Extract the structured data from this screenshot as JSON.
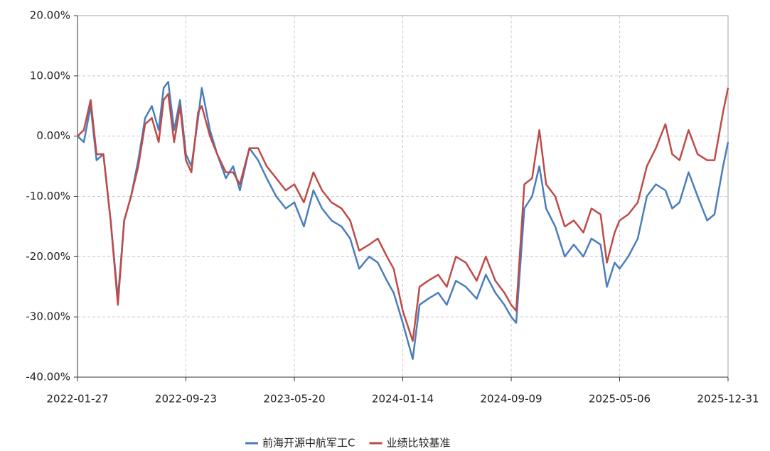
{
  "chart_data": {
    "type": "line",
    "x": [
      "2022-01-27",
      "2022-02-10",
      "2022-02-25",
      "2022-03-10",
      "2022-03-25",
      "2022-04-10",
      "2022-04-26",
      "2022-05-10",
      "2022-05-25",
      "2022-06-10",
      "2022-06-25",
      "2022-07-10",
      "2022-07-25",
      "2022-08-05",
      "2022-08-15",
      "2022-08-28",
      "2022-09-10",
      "2022-09-23",
      "2022-10-05",
      "2022-10-20",
      "2022-10-28",
      "2022-11-15",
      "2022-12-01",
      "2022-12-20",
      "2023-01-05",
      "2023-01-20",
      "2023-02-10",
      "2023-03-01",
      "2023-03-20",
      "2023-04-10",
      "2023-05-01",
      "2023-05-20",
      "2023-06-10",
      "2023-07-01",
      "2023-07-20",
      "2023-08-10",
      "2023-09-01",
      "2023-09-20",
      "2023-10-10",
      "2023-11-01",
      "2023-11-20",
      "2023-12-10",
      "2023-12-25",
      "2024-01-14",
      "2024-02-05",
      "2024-02-20",
      "2024-03-10",
      "2024-04-01",
      "2024-04-20",
      "2024-05-10",
      "2024-06-01",
      "2024-06-25",
      "2024-07-15",
      "2024-08-05",
      "2024-08-25",
      "2024-09-09",
      "2024-09-20",
      "2024-10-08",
      "2024-10-25",
      "2024-11-10",
      "2024-11-25",
      "2024-12-15",
      "2025-01-05",
      "2025-01-25",
      "2025-02-15",
      "2025-03-05",
      "2025-03-25",
      "2025-04-08",
      "2025-04-25",
      "2025-05-06",
      "2025-05-25",
      "2025-06-15",
      "2025-07-05",
      "2025-07-25",
      "2025-08-15",
      "2025-08-30",
      "2025-09-15",
      "2025-10-05",
      "2025-10-25",
      "2025-11-15",
      "2025-12-01",
      "2025-12-20",
      "2025-12-31"
    ],
    "series": [
      {
        "name": "前海开源中航军工C",
        "color": "#4a7ebb",
        "values": [
          0,
          -1,
          5,
          -4,
          -3,
          -14,
          -27,
          -14,
          -10,
          -4,
          3,
          5,
          1,
          8,
          9,
          1,
          6,
          -3,
          -5,
          3,
          8,
          1,
          -3,
          -7,
          -5,
          -9,
          -2,
          -4,
          -7,
          -10,
          -12,
          -11,
          -15,
          -9,
          -12,
          -14,
          -15,
          -17,
          -22,
          -20,
          -21,
          -24,
          -26,
          -31,
          -37,
          -28,
          -27,
          -26,
          -28,
          -24,
          -25,
          -27,
          -23,
          -26,
          -28,
          -30,
          -31,
          -12,
          -10,
          -5,
          -12,
          -15,
          -20,
          -18,
          -20,
          -17,
          -18,
          -25,
          -21,
          -22,
          -20,
          -17,
          -10,
          -8,
          -9,
          -12,
          -11,
          -6,
          -10,
          -14,
          -13,
          -5,
          -1
        ]
      },
      {
        "name": "业绩比较基准",
        "color": "#be4b48",
        "values": [
          0,
          1,
          6,
          -3,
          -3,
          -14,
          -28,
          -14,
          -10,
          -5,
          2,
          3,
          -1,
          6,
          7,
          -1,
          5,
          -4,
          -6,
          4,
          5,
          0,
          -3,
          -6,
          -6,
          -8,
          -2,
          -2,
          -5,
          -7,
          -9,
          -8,
          -11,
          -6,
          -9,
          -11,
          -12,
          -14,
          -19,
          -18,
          -17,
          -20,
          -22,
          -29,
          -34,
          -25,
          -24,
          -23,
          -25,
          -20,
          -21,
          -24,
          -20,
          -24,
          -26,
          -28,
          -29,
          -8,
          -7,
          1,
          -8,
          -10,
          -15,
          -14,
          -16,
          -12,
          -13,
          -21,
          -16,
          -14,
          -13,
          -11,
          -5,
          -2,
          2,
          -3,
          -4,
          1,
          -3,
          -4,
          -4,
          4,
          8
        ]
      }
    ],
    "xlim": [
      "2022-01-27",
      "2025-12-31"
    ],
    "xticks": [
      "2022-01-27",
      "2022-09-23",
      "2023-05-20",
      "2024-01-14",
      "2024-09-09",
      "2025-05-06",
      "2025-12-31"
    ],
    "ylim": [
      -40,
      20
    ],
    "yticks": [
      {
        "value": -40,
        "label": "-40.00%"
      },
      {
        "value": -30,
        "label": "-30.00%"
      },
      {
        "value": -20,
        "label": "-20.00%"
      },
      {
        "value": -10,
        "label": "-10.00%"
      },
      {
        "value": 0,
        "label": "0.00%"
      },
      {
        "value": 10,
        "label": "10.00%"
      },
      {
        "value": 20,
        "label": "20.00%"
      }
    ],
    "grid": true,
    "legend": "bottom"
  }
}
